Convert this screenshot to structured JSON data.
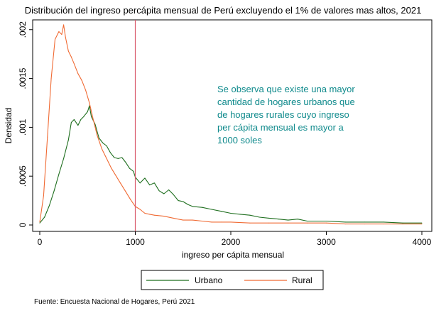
{
  "chart_data": {
    "type": "line",
    "title": "Distribución del ingreso percápita mensual de Perú excluyendo el 1% de valores mas altos, 2021",
    "xlabel": "ingreso per cápita mensual",
    "ylabel": "Densidad",
    "xlim": [
      0,
      4000
    ],
    "ylim": [
      0,
      0.0021
    ],
    "x_ticks": [
      0,
      1000,
      2000,
      3000,
      4000
    ],
    "x_tick_labels": [
      "0",
      "1000",
      "2000",
      "3000",
      "4000"
    ],
    "y_ticks": [
      0,
      0.0005,
      0.001,
      0.0015,
      0.002
    ],
    "y_tick_labels": [
      "0",
      ".0005",
      ".001",
      ".0015",
      ".002"
    ],
    "grid": false,
    "legend_position": "bottom",
    "reference_line": {
      "x": 1000,
      "color": "#d9596b"
    },
    "annotation": "Se observa que existe una mayor cantidad de hogares urbanos  que de hogares rurales cuyo ingreso per cápita mensual es mayor a 1000 soles",
    "annotation_lines": [
      "Se observa que existe una mayor",
      "cantidad de hogares urbanos  que",
      "de hogares rurales cuyo ingreso",
      "per cápita mensual es mayor a",
      "1000 soles"
    ],
    "annotation_color": "#0f8a8c",
    "source_note": "Fuente: Encuesta Nacional de Hogares, Perú 2021",
    "series": [
      {
        "name": "Urbano",
        "color": "#1e6e1e",
        "x": [
          0,
          50,
          100,
          150,
          200,
          250,
          300,
          330,
          360,
          400,
          430,
          460,
          500,
          520,
          540,
          580,
          620,
          660,
          700,
          740,
          780,
          820,
          860,
          900,
          940,
          980,
          1000,
          1050,
          1100,
          1150,
          1200,
          1250,
          1300,
          1350,
          1400,
          1450,
          1500,
          1550,
          1600,
          1700,
          1800,
          1900,
          2000,
          2100,
          2200,
          2300,
          2400,
          2500,
          2600,
          2700,
          2800,
          2900,
          3000,
          3200,
          3400,
          3600,
          3800,
          4000
        ],
        "y": [
          2e-05,
          8e-05,
          0.0002,
          0.00035,
          0.00052,
          0.00068,
          0.00087,
          0.00105,
          0.00108,
          0.00102,
          0.00108,
          0.00111,
          0.00116,
          0.00122,
          0.00111,
          0.00103,
          0.00089,
          0.00084,
          0.00081,
          0.00074,
          0.00069,
          0.00068,
          0.00069,
          0.00064,
          0.00058,
          0.00055,
          0.00049,
          0.00043,
          0.00048,
          0.00041,
          0.00043,
          0.00035,
          0.00032,
          0.00036,
          0.00031,
          0.00025,
          0.00024,
          0.00021,
          0.00019,
          0.00018,
          0.00016,
          0.00014,
          0.00012,
          0.00011,
          0.0001,
          8e-05,
          7e-05,
          6e-05,
          5e-05,
          6e-05,
          4e-05,
          4e-05,
          4e-05,
          3e-05,
          3e-05,
          3e-05,
          2e-05,
          2e-05
        ]
      },
      {
        "name": "Rural",
        "color": "#f06a33",
        "x": [
          0,
          40,
          80,
          120,
          160,
          200,
          230,
          250,
          270,
          300,
          330,
          360,
          400,
          440,
          480,
          520,
          560,
          600,
          650,
          700,
          750,
          800,
          850,
          900,
          950,
          1000,
          1050,
          1100,
          1150,
          1200,
          1300,
          1400,
          1500,
          1600,
          1700,
          1800,
          1900,
          2000,
          2200,
          2400,
          2600,
          2800,
          3000,
          3200,
          3400,
          3600,
          3800,
          4000
        ],
        "y": [
          3e-05,
          0.0003,
          0.0009,
          0.0015,
          0.0019,
          0.00198,
          0.00195,
          0.00205,
          0.00192,
          0.00178,
          0.00172,
          0.00165,
          0.00155,
          0.00148,
          0.00138,
          0.00125,
          0.00108,
          0.00092,
          0.00078,
          0.00068,
          0.00058,
          0.0005,
          0.00042,
          0.00034,
          0.00026,
          0.00019,
          0.00016,
          0.00012,
          0.00011,
          0.0001,
          9e-05,
          7e-05,
          5e-05,
          5e-05,
          4e-05,
          3e-05,
          3e-05,
          3e-05,
          2e-05,
          2e-05,
          2e-05,
          2e-05,
          2e-05,
          1e-05,
          1e-05,
          1e-05,
          1e-05,
          1e-05
        ]
      }
    ]
  }
}
